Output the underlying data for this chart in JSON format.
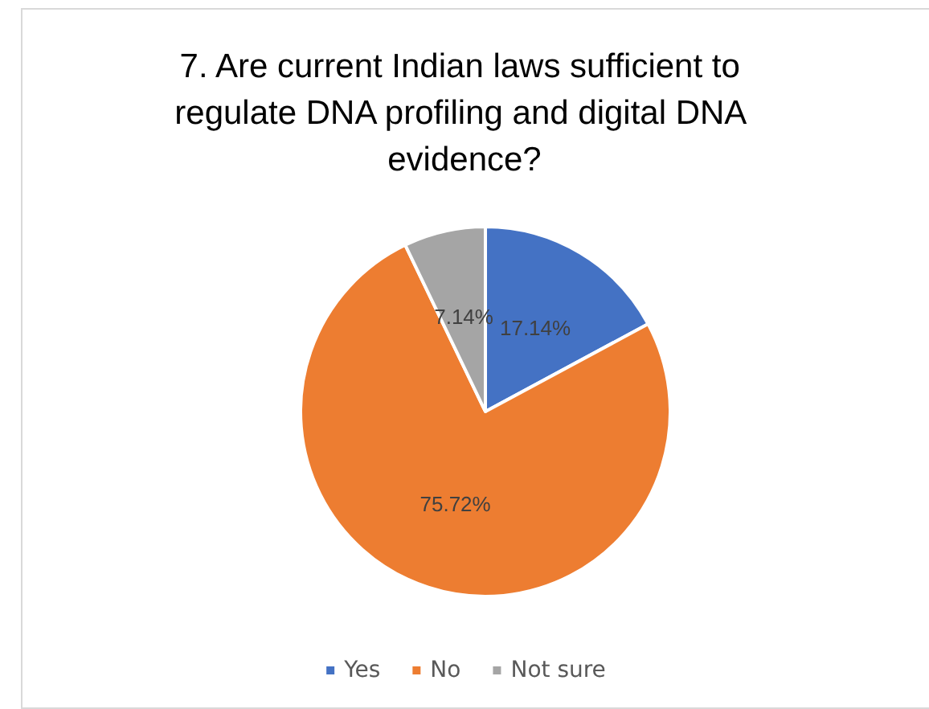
{
  "chart_data": {
    "type": "pie",
    "title": "7. Are current Indian laws sufficient to regulate DNA profiling and digital DNA evidence?",
    "categories": [
      "Yes",
      "No",
      "Not sure"
    ],
    "values": [
      17.14,
      75.72,
      7.14
    ],
    "colors": [
      "#4472c4",
      "#ed7d31",
      "#a5a5a5"
    ],
    "value_labels": [
      "17.14%",
      "75.72%",
      "7.14%"
    ],
    "legend": "bottom"
  }
}
